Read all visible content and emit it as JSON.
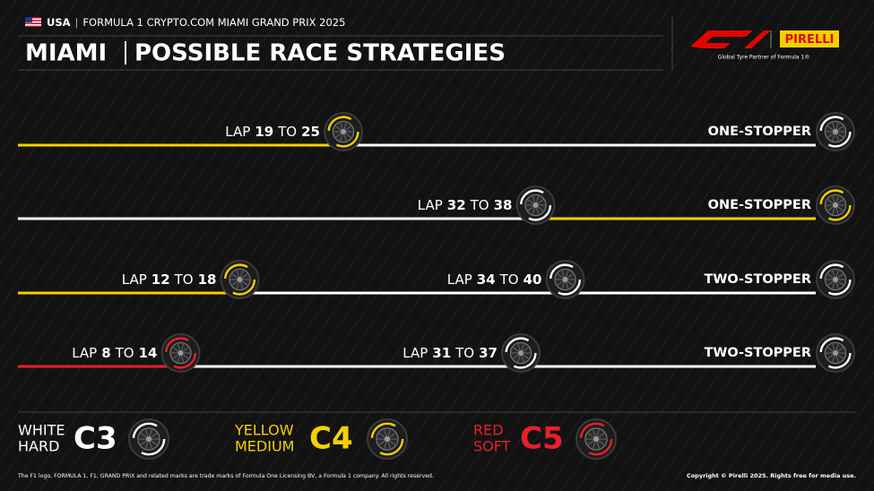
{
  "header": {
    "country": "USA",
    "event": "FORMULA 1 CRYPTO.COM MIAMI GRAND PRIX 2025",
    "title_left": "MIAMI",
    "title_right": "POSSIBLE RACE STRATEGIES",
    "brand": "PIRELLI",
    "partner": "Global Tyre Partner of Formula 1®"
  },
  "stop_text": {
    "lap": "LAP",
    "to": "TO"
  },
  "compounds": [
    {
      "color_word": "WHITE",
      "name": "HARD",
      "code": "C3",
      "color": "#ffffff"
    },
    {
      "color_word": "YELLOW",
      "name": "MEDIUM",
      "code": "C4",
      "color": "#f5d000"
    },
    {
      "color_word": "RED",
      "name": "SOFT",
      "code": "C5",
      "color": "#e8202a"
    }
  ],
  "strategies": [
    {
      "name": "ONE-STOPPER",
      "stints": [
        "MEDIUM",
        "HARD"
      ],
      "stops": [
        {
          "from": 19,
          "to": 25
        }
      ]
    },
    {
      "name": "ONE-STOPPER",
      "stints": [
        "HARD",
        "MEDIUM"
      ],
      "stops": [
        {
          "from": 32,
          "to": 38
        }
      ]
    },
    {
      "name": "TWO-STOPPER",
      "stints": [
        "MEDIUM",
        "HARD",
        "HARD"
      ],
      "stops": [
        {
          "from": 12,
          "to": 18
        },
        {
          "from": 34,
          "to": 40
        }
      ]
    },
    {
      "name": "TWO-STOPPER",
      "stints": [
        "SOFT",
        "HARD",
        "HARD"
      ],
      "stops": [
        {
          "from": 8,
          "to": 14
        },
        {
          "from": 31,
          "to": 37
        }
      ]
    }
  ],
  "footer": {
    "left": "The F1 logo, FORMULA 1, F1, GRAND PRIX and related marks are trade marks of Formula One Licensing BV, a Formula 1 company. All rights reserved.",
    "right": "Copyright © Pirelli 2025. Rights free for media use."
  }
}
